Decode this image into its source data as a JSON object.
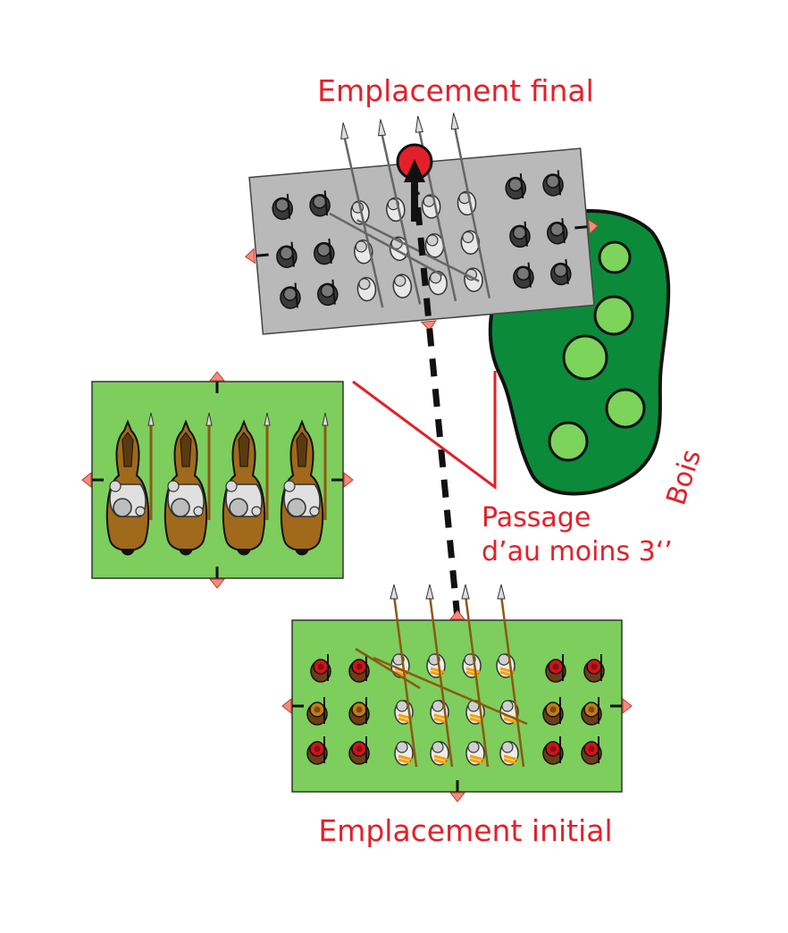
{
  "labels": {
    "final": "Emplacement final",
    "initial": "Emplacement initial",
    "passage_line1": "Passage",
    "passage_line2": "d’au moins 3‘’",
    "wood": "Bois"
  },
  "colors": {
    "label_red": "#e3202a",
    "grass": "#7dce5d",
    "ghost": "#b9b9b9",
    "forest": "#0b8a3a",
    "tree": "#7dd45a",
    "horse": "#a0691c",
    "marker": "#f28c7c"
  },
  "icons": {
    "arrow": "move-arrow-icon",
    "red_dot": "start-dot-icon",
    "marker": "edge-marker-icon"
  }
}
